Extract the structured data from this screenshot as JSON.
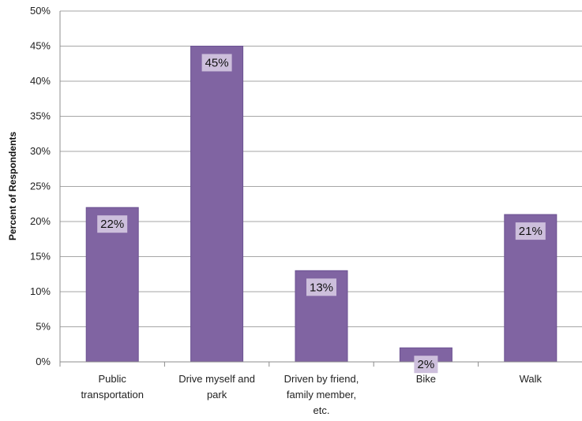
{
  "chart_data": {
    "type": "bar",
    "title": "",
    "xlabel": "",
    "ylabel": "Percent of Respondents",
    "ylim": [
      0,
      50
    ],
    "y_ticks": [
      "0%",
      "5%",
      "10%",
      "15%",
      "20%",
      "25%",
      "30%",
      "35%",
      "40%",
      "45%",
      "50%"
    ],
    "categories": [
      [
        "Public",
        "transportation"
      ],
      [
        "Drive myself and",
        "park"
      ],
      [
        "Driven by friend,",
        "family member,",
        "etc."
      ],
      [
        "Bike"
      ],
      [
        "Walk"
      ]
    ],
    "values": [
      22,
      45,
      13,
      2,
      21
    ],
    "data_labels": [
      "22%",
      "45%",
      "13%",
      "2%",
      "21%"
    ],
    "grid": true,
    "legend": "none",
    "colors": {
      "bar": "#8064a2",
      "bar_edge": "#6b5292",
      "label_box": "#cdbfdc",
      "grid": "#a6a6a6",
      "axis": "#8c8c8c"
    }
  }
}
